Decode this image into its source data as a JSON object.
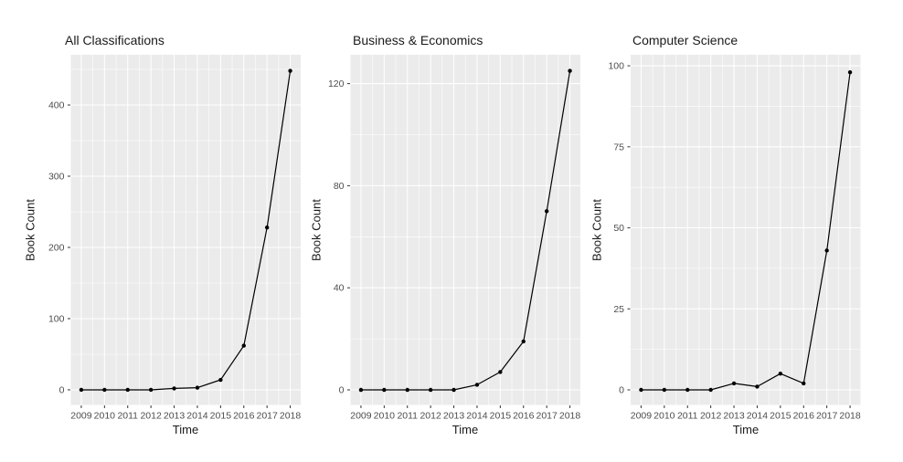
{
  "figure": {
    "kind": "r-ggplot-multipanel",
    "background": "#ffffff"
  },
  "colors": {
    "panel_background": "#ebebeb",
    "grid_major": "#ffffff",
    "grid_minor": "#ffffff",
    "series_line": "#000000",
    "series_point": "#000000",
    "tick_text": "#4d4d4d",
    "tick_mark": "#333333",
    "title_text": "#1a1a1a"
  },
  "chart_data": [
    {
      "type": "line",
      "title": "All Classifications",
      "xlabel": "Time",
      "ylabel": "Book Count",
      "x": [
        2009,
        2010,
        2011,
        2012,
        2013,
        2014,
        2015,
        2016,
        2017,
        2018
      ],
      "values": [
        0,
        0,
        0,
        0,
        2,
        3,
        14,
        62,
        228,
        448
      ],
      "yticks": [
        0,
        100,
        200,
        300,
        400
      ],
      "ylim": [
        -21.2,
        470.5
      ],
      "xlim": [
        2008.55,
        2018.45
      ],
      "grid": "white major+minor on gray panel",
      "legend": "none"
    },
    {
      "type": "line",
      "title": "Business & Economics",
      "xlabel": "Time",
      "ylabel": "Book Count",
      "x": [
        2009,
        2010,
        2011,
        2012,
        2013,
        2014,
        2015,
        2016,
        2017,
        2018
      ],
      "values": [
        0,
        0,
        0,
        0,
        0,
        2,
        7,
        19,
        70,
        125
      ],
      "yticks": [
        0,
        40,
        80,
        120
      ],
      "ylim": [
        -5.9,
        131.3
      ],
      "xlim": [
        2008.55,
        2018.45
      ],
      "grid": "white major+minor on gray panel",
      "legend": "none"
    },
    {
      "type": "line",
      "title": "Computer Science",
      "xlabel": "Time",
      "ylabel": "Book Count",
      "x": [
        2009,
        2010,
        2011,
        2012,
        2013,
        2014,
        2015,
        2016,
        2017,
        2018
      ],
      "values": [
        0,
        0,
        0,
        0,
        2,
        1,
        5,
        2,
        43,
        98
      ],
      "yticks": [
        0,
        25,
        50,
        75,
        100
      ],
      "ylim": [
        -4.65,
        103.4
      ],
      "xlim": [
        2008.55,
        2018.45
      ],
      "grid": "white major+minor on gray panel",
      "legend": "none"
    }
  ]
}
